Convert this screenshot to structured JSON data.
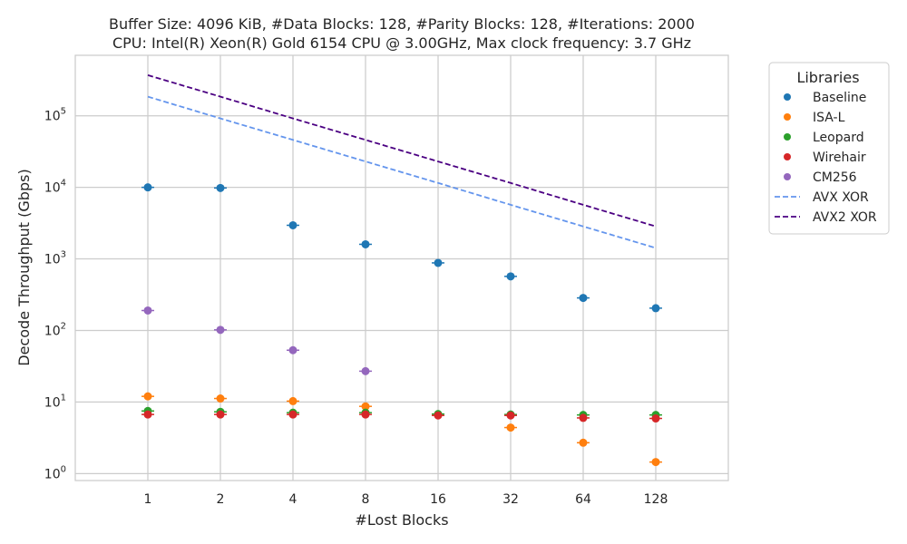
{
  "chart_data": {
    "type": "scatter",
    "title_lines": [
      "Buffer Size: 4096 KiB, #Data Blocks: 128, #Parity Blocks: 128, #Iterations: 2000",
      "CPU: Intel(R) Xeon(R) Gold 6154 CPU @ 3.00GHz, Max clock frequency: 3.7 GHz"
    ],
    "xlabel": "#Lost Blocks",
    "ylabel": "Decode Throughput (Gbps)",
    "x_scale": "log2",
    "y_scale": "log10",
    "x": [
      1,
      2,
      4,
      8,
      16,
      32,
      64,
      128
    ],
    "x_tick_labels": [
      "1",
      "2",
      "4",
      "8",
      "16",
      "32",
      "64",
      "128"
    ],
    "ylim": [
      0.8,
      700000
    ],
    "y_ticks": [
      1,
      10,
      100,
      1000,
      10000,
      100000
    ],
    "y_tick_labels": [
      {
        "base": "10",
        "exp": "0"
      },
      {
        "base": "10",
        "exp": "1"
      },
      {
        "base": "10",
        "exp": "2"
      },
      {
        "base": "10",
        "exp": "3"
      },
      {
        "base": "10",
        "exp": "4"
      },
      {
        "base": "10",
        "exp": "5"
      }
    ],
    "grid": true,
    "legend": {
      "title": "Libraries",
      "placement": "outside-top-right"
    },
    "series": [
      {
        "name": "Baseline",
        "kind": "points",
        "color": "#1f77b4",
        "values": [
          10000,
          9800,
          2950,
          1600,
          880,
          570,
          285,
          205
        ]
      },
      {
        "name": "ISA-L",
        "kind": "points",
        "color": "#ff7f0e",
        "values": [
          12,
          11.2,
          10.3,
          8.7,
          null,
          4.4,
          2.7,
          1.45
        ]
      },
      {
        "name": "Leopard",
        "kind": "points",
        "color": "#2ca02c",
        "values": [
          7.5,
          7.3,
          7.1,
          7.1,
          6.8,
          6.7,
          6.6,
          6.6
        ]
      },
      {
        "name": "Wirehair",
        "kind": "points",
        "color": "#d62728",
        "values": [
          6.7,
          6.7,
          6.7,
          6.7,
          6.5,
          6.5,
          6.0,
          5.9
        ]
      },
      {
        "name": "CM256",
        "kind": "points",
        "color": "#9467bd",
        "values": [
          190,
          102,
          53,
          27,
          null,
          null,
          null,
          null
        ]
      },
      {
        "name": "AVX XOR",
        "kind": "dashed-line",
        "color": "#6495ed",
        "values": [
          185000,
          92000,
          46000,
          23000,
          11500,
          5700,
          2850,
          1420
        ]
      },
      {
        "name": "AVX2 XOR",
        "kind": "dashed-line",
        "color": "#4b0082",
        "values": [
          370000,
          185000,
          92000,
          46000,
          23000,
          11500,
          5700,
          2850
        ]
      }
    ]
  }
}
